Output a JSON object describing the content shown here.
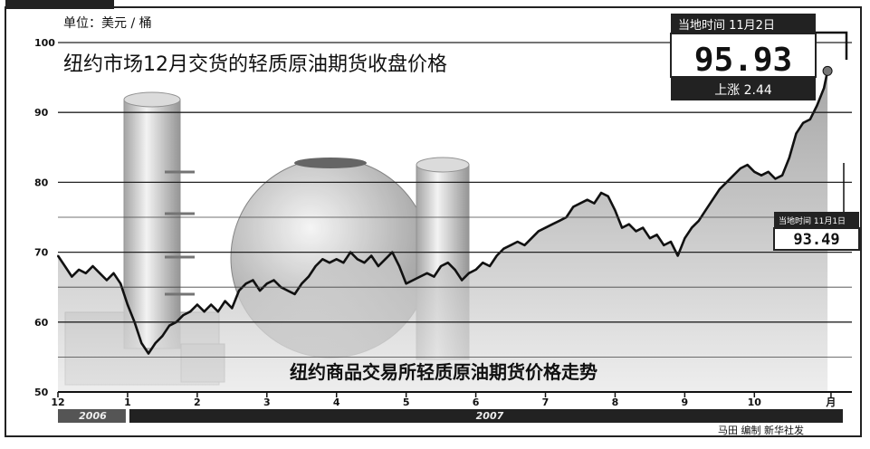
{
  "chart_data": {
    "type": "area",
    "unit_label": "单位：美元 / 桶",
    "title": "纽约市场12月交货的轻质原油期货收盘价格",
    "subtitle": "纽约商品交易所轻质原油期货价格走势",
    "ylim": [
      50,
      100
    ],
    "yticks": [
      50,
      60,
      70,
      80,
      90,
      100
    ],
    "ytick_labels": [
      "50",
      "60",
      "70",
      "80",
      "90",
      "100"
    ],
    "xticks": [
      {
        "label": "12",
        "t": 0
      },
      {
        "label": "1",
        "t": 1
      },
      {
        "label": "2",
        "t": 2
      },
      {
        "label": "3",
        "t": 3
      },
      {
        "label": "4",
        "t": 4
      },
      {
        "label": "5",
        "t": 5
      },
      {
        "label": "6",
        "t": 6
      },
      {
        "label": "7",
        "t": 7
      },
      {
        "label": "8",
        "t": 8
      },
      {
        "label": "9",
        "t": 9
      },
      {
        "label": "10",
        "t": 10
      },
      {
        "label": "月",
        "t": 11.1
      }
    ],
    "xlim": [
      0,
      11.4
    ],
    "year_bands": [
      {
        "label": "2006",
        "from": 0,
        "to": 1
      },
      {
        "label": "2007",
        "from": 1,
        "to": 11.4
      }
    ],
    "grid": true,
    "series": [
      {
        "x": [
          0,
          0.1,
          0.2,
          0.3,
          0.4,
          0.5,
          0.6,
          0.7,
          0.8,
          0.9,
          1.0,
          1.1,
          1.2,
          1.3,
          1.4,
          1.5,
          1.6,
          1.7,
          1.8,
          1.9,
          2.0,
          2.1,
          2.2,
          2.3,
          2.4,
          2.5,
          2.6,
          2.7,
          2.8,
          2.9,
          3.0,
          3.1,
          3.2,
          3.3,
          3.4,
          3.5,
          3.6,
          3.7,
          3.8,
          3.9,
          4.0,
          4.1,
          4.2,
          4.3,
          4.4,
          4.5,
          4.6,
          4.7,
          4.8,
          4.9,
          5.0,
          5.1,
          5.2,
          5.3,
          5.4,
          5.5,
          5.6,
          5.7,
          5.8,
          5.9,
          6.0,
          6.1,
          6.2,
          6.3,
          6.4,
          6.5,
          6.6,
          6.7,
          6.8,
          6.9,
          7.0,
          7.1,
          7.2,
          7.3,
          7.4,
          7.5,
          7.6,
          7.7,
          7.8,
          7.9,
          8.0,
          8.1,
          8.2,
          8.3,
          8.4,
          8.5,
          8.6,
          8.7,
          8.8,
          8.9,
          9.0,
          9.1,
          9.2,
          9.3,
          9.4,
          9.5,
          9.6,
          9.7,
          9.8,
          9.9,
          10.0,
          10.1,
          10.2,
          10.3,
          10.4,
          10.5,
          10.6,
          10.7,
          10.8,
          10.9,
          11.0,
          11.05
        ],
        "values": [
          69.5,
          68,
          66.5,
          67.5,
          67,
          68,
          67,
          66,
          67,
          65.5,
          62.5,
          60,
          57,
          55.5,
          57,
          58,
          59.5,
          60,
          61,
          61.5,
          62.5,
          61.5,
          62.5,
          61.5,
          63,
          62,
          64.5,
          65.5,
          66,
          64.5,
          65.5,
          66,
          65,
          64.5,
          64,
          65.5,
          66.5,
          68,
          69,
          68.5,
          69,
          68.5,
          70,
          69,
          68.5,
          69.5,
          68,
          69,
          70,
          68,
          65.5,
          66,
          66.5,
          67,
          66.5,
          68,
          68.5,
          67.5,
          66,
          67,
          67.5,
          68.5,
          68,
          69.5,
          70.5,
          71,
          71.5,
          71,
          72,
          73,
          73.5,
          74,
          74.5,
          75,
          76.5,
          77,
          77.5,
          77,
          78.5,
          78,
          76,
          73.5,
          74,
          73,
          73.5,
          72,
          72.5,
          71,
          71.5,
          69.5,
          72,
          73.5,
          74.5,
          76,
          77.5,
          79,
          80,
          81,
          82,
          82.5,
          81.5,
          81,
          81.5,
          80.5,
          81,
          83.5,
          87,
          88.5,
          89,
          91,
          93.5,
          95.93
        ]
      }
    ],
    "callouts": [
      {
        "line1": "当地时间 11月2日",
        "value": "95.93",
        "change": "上涨 2.44"
      },
      {
        "line1": "当地时间 11月1日",
        "value": "93.49"
      }
    ],
    "credit": "马田 编制  新华社发"
  }
}
